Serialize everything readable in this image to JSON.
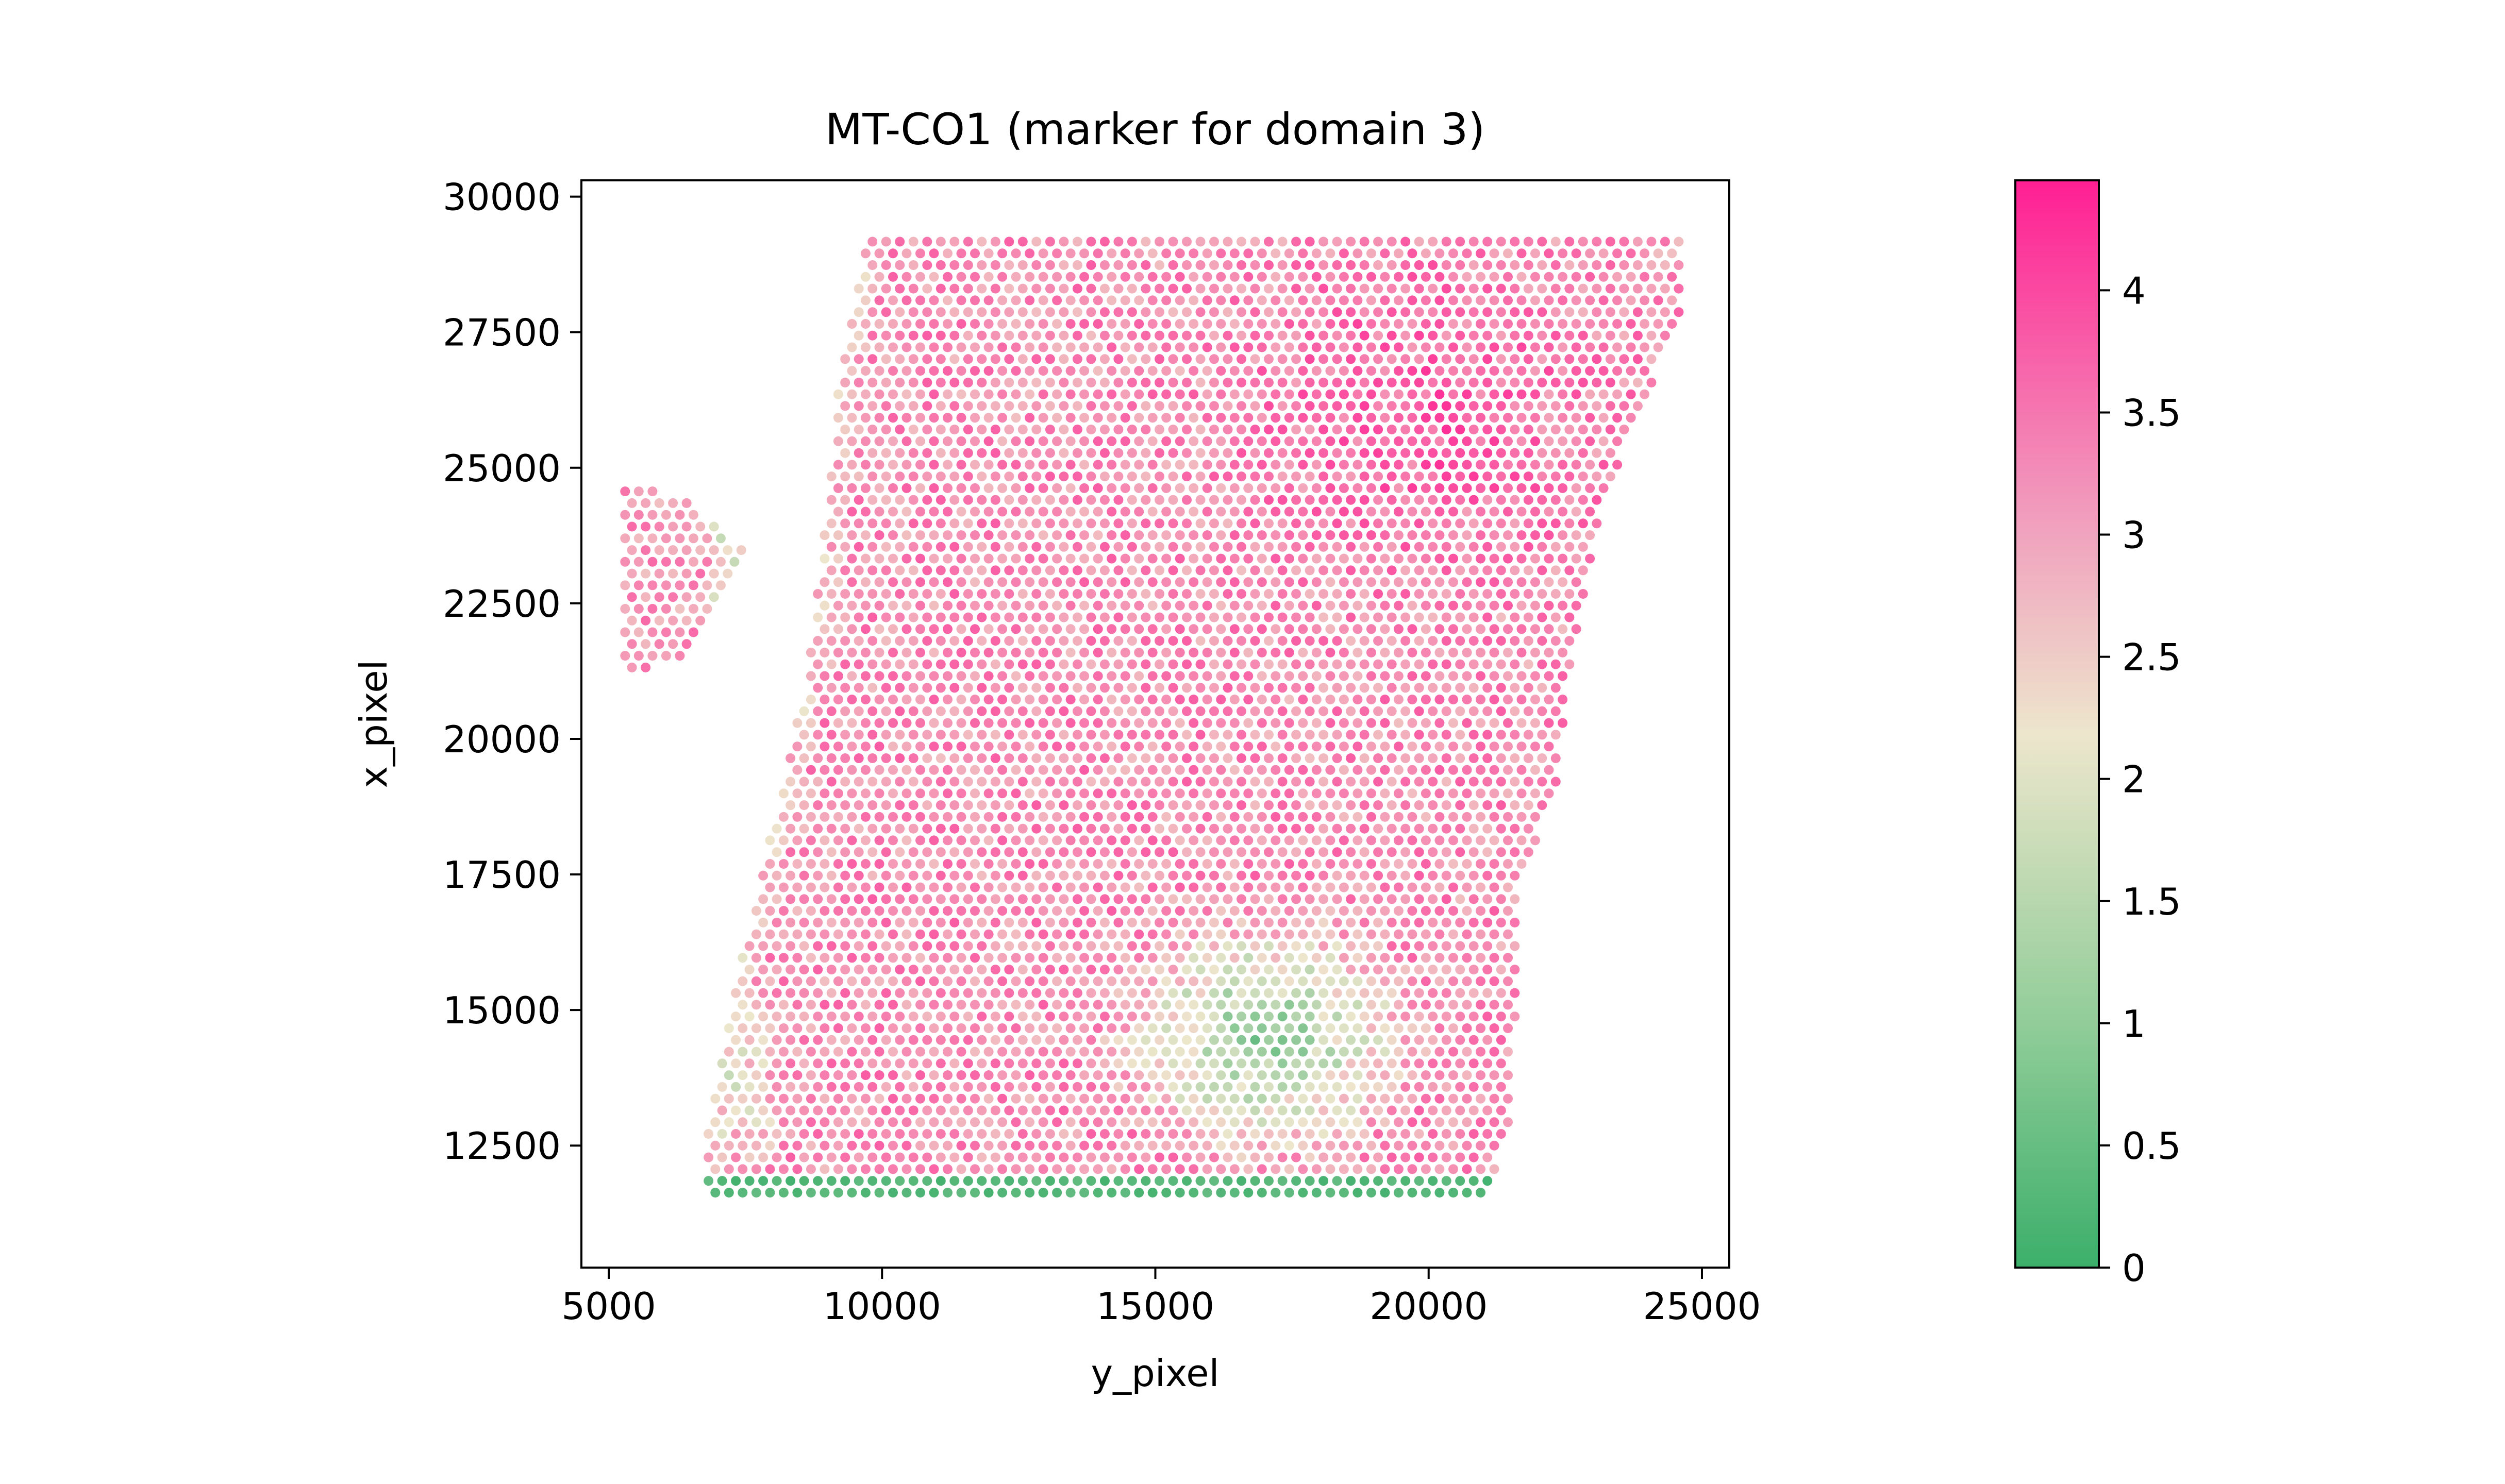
{
  "chart_data": {
    "type": "scatter",
    "title": "MT-CO1 (marker for domain 3)",
    "xlabel": "y_pixel",
    "ylabel": "x_pixel",
    "xlim": [
      4500,
      25500
    ],
    "ylim": [
      30300,
      10250
    ],
    "y_inverted": true,
    "x_ticks": [
      5000,
      10000,
      15000,
      20000,
      25000
    ],
    "y_ticks": [
      12500,
      15000,
      17500,
      20000,
      22500,
      25000,
      27500,
      30000
    ],
    "grid": false,
    "spot_spacing": 250,
    "tissue_outline": {
      "top_edge": [
        [
          6700,
          11500
        ],
        [
          21000,
          11250
        ]
      ],
      "right_edge": [
        [
          21000,
          11250
        ],
        [
          21500,
          13000
        ],
        [
          21700,
          17500
        ],
        [
          22300,
          19000
        ],
        [
          22600,
          21500
        ],
        [
          23200,
          24500
        ],
        [
          23800,
          25800
        ],
        [
          24600,
          27800
        ],
        [
          24600,
          29250
        ]
      ],
      "bottom_edge": [
        [
          24600,
          29250
        ],
        [
          9800,
          29450
        ]
      ],
      "left_edge": [
        [
          9800,
          29450
        ],
        [
          9200,
          26500
        ],
        [
          9000,
          24500
        ],
        [
          8600,
          21000
        ],
        [
          7900,
          18000
        ],
        [
          7200,
          15000
        ],
        [
          6800,
          13000
        ],
        [
          6700,
          11500
        ]
      ]
    },
    "satellite_patch": [
      [
        5300,
        21200
      ],
      [
        6300,
        21400
      ],
      [
        7500,
        23500
      ],
      [
        6300,
        24500
      ],
      [
        5300,
        24700
      ]
    ],
    "expression_regions": [
      {
        "region": "top band rows",
        "x_range": [
          6700,
          21000
        ],
        "y_range": [
          11200,
          12000
        ],
        "value": 0.1
      },
      {
        "region": "upper center-right",
        "center": [
          17000,
          14500
        ],
        "value": 1.2
      },
      {
        "region": "upper-left corner strip",
        "center": [
          7500,
          13500
        ],
        "value": 2.2
      },
      {
        "region": "tissue body",
        "value": 3.2
      },
      {
        "region": "lower-right body",
        "center": [
          20000,
          26000
        ],
        "value": 3.8
      }
    ],
    "colorbar": {
      "label": "",
      "min": 0,
      "max": 4.45,
      "ticks": [
        "0",
        "0.5",
        "1",
        "1.5",
        "2",
        "2.5",
        "3",
        "3.5",
        "4"
      ],
      "colors": [
        "#3caf6b",
        "#ede6cc",
        "#ff1f93"
      ],
      "color_stops": [
        0,
        2.2,
        4.45
      ]
    }
  }
}
